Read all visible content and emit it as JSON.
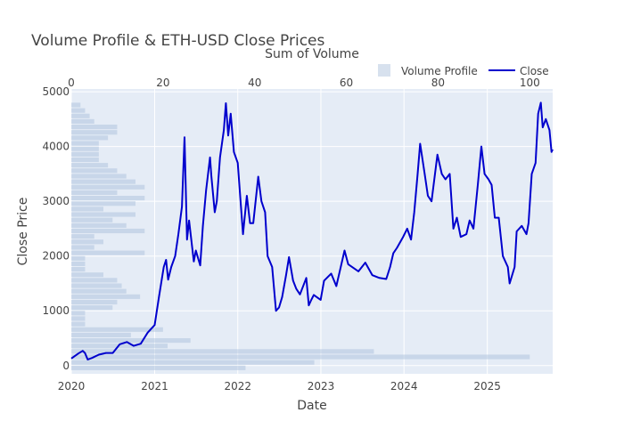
{
  "chart_data": {
    "type": "line",
    "title": "Volume Profile & ETH-USD Close Prices",
    "xlabel": "Date",
    "ylabel": "Close Price",
    "x2label": "Sum of Volume",
    "xlim": [
      "2020-01-01",
      "2025-10-15"
    ],
    "ylim": [
      -150,
      5050
    ],
    "x2lim": [
      0,
      105
    ],
    "x_ticks": [
      "2020",
      "2021",
      "2022",
      "2023",
      "2024",
      "2025"
    ],
    "y_ticks": [
      0,
      1000,
      2000,
      3000,
      4000,
      5000
    ],
    "x2_ticks": [
      0,
      20,
      40,
      60,
      80,
      100
    ],
    "grid": true,
    "legend_position": "top-right",
    "colors": {
      "plot_bg": "#E5ECF6",
      "grid": "#FFFFFF",
      "close": "#0000CD",
      "volume": "#B0C4DE"
    },
    "legend": [
      {
        "name": "Volume Profile",
        "kind": "bar"
      },
      {
        "name": "Close",
        "kind": "line"
      }
    ],
    "series": [
      {
        "name": "Close",
        "x": [
          "2020-01-01",
          "2020-02-01",
          "2020-02-20",
          "2020-03-01",
          "2020-03-13",
          "2020-04-01",
          "2020-05-01",
          "2020-06-01",
          "2020-07-01",
          "2020-08-01",
          "2020-09-01",
          "2020-10-01",
          "2020-11-01",
          "2020-12-01",
          "2021-01-01",
          "2021-01-20",
          "2021-02-10",
          "2021-02-20",
          "2021-03-01",
          "2021-03-15",
          "2021-04-01",
          "2021-04-15",
          "2021-05-01",
          "2021-05-12",
          "2021-05-23",
          "2021-06-01",
          "2021-06-22",
          "2021-07-01",
          "2021-07-20",
          "2021-08-01",
          "2021-08-15",
          "2021-09-01",
          "2021-09-07",
          "2021-09-22",
          "2021-10-01",
          "2021-10-15",
          "2021-11-01",
          "2021-11-10",
          "2021-11-20",
          "2021-12-01",
          "2021-12-15",
          "2022-01-01",
          "2022-01-24",
          "2022-02-10",
          "2022-02-24",
          "2022-03-10",
          "2022-04-01",
          "2022-04-15",
          "2022-05-01",
          "2022-05-12",
          "2022-06-01",
          "2022-06-18",
          "2022-07-01",
          "2022-07-15",
          "2022-08-01",
          "2022-08-14",
          "2022-09-01",
          "2022-09-15",
          "2022-10-01",
          "2022-10-29",
          "2022-11-09",
          "2022-11-20",
          "2022-12-01",
          "2022-12-31",
          "2023-01-15",
          "2023-02-15",
          "2023-03-10",
          "2023-04-15",
          "2023-05-01",
          "2023-06-15",
          "2023-07-15",
          "2023-08-15",
          "2023-09-15",
          "2023-10-15",
          "2023-11-01",
          "2023-11-15",
          "2023-12-01",
          "2023-12-28",
          "2024-01-15",
          "2024-02-01",
          "2024-02-15",
          "2024-03-01",
          "2024-03-12",
          "2024-04-01",
          "2024-04-15",
          "2024-05-01",
          "2024-05-27",
          "2024-06-15",
          "2024-07-01",
          "2024-07-20",
          "2024-08-05",
          "2024-08-20",
          "2024-09-06",
          "2024-10-01",
          "2024-10-15",
          "2024-11-01",
          "2024-11-20",
          "2024-12-06",
          "2024-12-20",
          "2025-01-06",
          "2025-01-20",
          "2025-02-03",
          "2025-02-20",
          "2025-03-10",
          "2025-04-01",
          "2025-04-09",
          "2025-05-01",
          "2025-05-10",
          "2025-06-01",
          "2025-06-22",
          "2025-07-01",
          "2025-07-15",
          "2025-08-01",
          "2025-08-12",
          "2025-08-24",
          "2025-09-01",
          "2025-09-15",
          "2025-10-01",
          "2025-10-10",
          "2025-10-15"
        ],
        "y": [
          130,
          220,
          270,
          230,
          110,
          140,
          200,
          230,
          230,
          390,
          430,
          360,
          400,
          600,
          740,
          1250,
          1800,
          1930,
          1570,
          1800,
          2000,
          2400,
          2900,
          4170,
          2300,
          2650,
          1900,
          2100,
          1830,
          2550,
          3200,
          3800,
          3460,
          2800,
          3000,
          3800,
          4300,
          4790,
          4200,
          4600,
          3900,
          3700,
          2400,
          3100,
          2600,
          2600,
          3450,
          3000,
          2800,
          2000,
          1800,
          1000,
          1060,
          1250,
          1650,
          1980,
          1550,
          1400,
          1300,
          1600,
          1100,
          1200,
          1290,
          1200,
          1550,
          1680,
          1450,
          2100,
          1850,
          1720,
          1880,
          1650,
          1600,
          1580,
          1800,
          2050,
          2150,
          2350,
          2500,
          2300,
          2800,
          3500,
          4050,
          3500,
          3100,
          3000,
          3850,
          3500,
          3400,
          3500,
          2500,
          2700,
          2350,
          2400,
          2650,
          2500,
          3300,
          4000,
          3500,
          3400,
          3300,
          2700,
          2700,
          2000,
          1800,
          1500,
          1800,
          2450,
          2550,
          2400,
          2600,
          3500,
          3700,
          4600,
          4800,
          4350,
          4500,
          4300,
          3900,
          3950
        ]
      },
      {
        "name": "Volume Profile",
        "price_levels": [
          -50,
          50,
          150,
          250,
          350,
          450,
          550,
          650,
          750,
          850,
          950,
          1050,
          1150,
          1250,
          1350,
          1450,
          1550,
          1650,
          1750,
          1850,
          1950,
          2050,
          2150,
          2250,
          2350,
          2450,
          2550,
          2650,
          2750,
          2850,
          2950,
          3050,
          3150,
          3250,
          3350,
          3450,
          3550,
          3650,
          3750,
          3850,
          3950,
          4050,
          4150,
          4250,
          4350,
          4450,
          4550,
          4650,
          4750
        ],
        "volume": [
          38,
          53,
          100,
          66,
          21,
          26,
          13,
          20,
          3,
          3,
          3,
          9,
          10,
          15,
          12,
          11,
          10,
          7,
          3,
          3,
          3,
          16,
          5,
          7,
          5,
          16,
          12,
          9,
          14,
          7,
          14,
          16,
          10,
          16,
          14,
          12,
          10,
          8,
          6,
          6,
          6,
          6,
          8,
          10,
          10,
          5,
          4,
          3,
          2
        ]
      }
    ]
  }
}
